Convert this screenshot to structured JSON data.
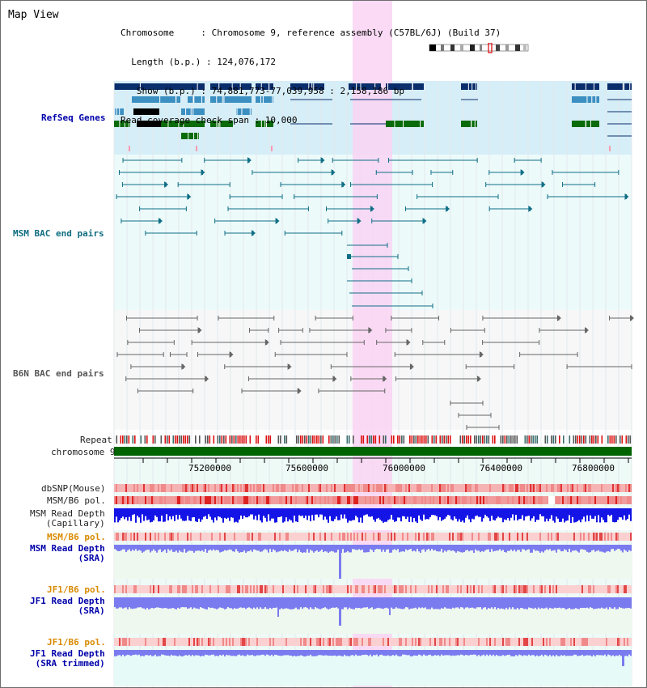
{
  "header": {
    "title": "Map View",
    "info_lines": [
      "Chromosome     : Chromosome 9, reference assembly (C57BL/6J) (Build 37)",
      "  Length (b.p.) : 124,076,172",
      "   Show (b.p.) : 74,881,773-77,039,958 : 2,158,186 bp",
      "Read coverage check span : 10,000"
    ]
  },
  "tracks": {
    "refseq": "RefSeq Genes",
    "msm_bac": "MSM BAC end pairs",
    "b6n_bac": "B6N BAC end pairs",
    "repeat": "Repeat",
    "chromosome": "chromosome 9",
    "dbsnp": "dbSNP(Mouse)",
    "msm_b6_pol": "MSM/B6 pol.",
    "msm_depth_cap": "MSM Read Depth\n(Capillary)",
    "msm_b6_pol_sra": "MSM/B6 pol.",
    "msm_depth_sra": "MSM Read Depth\n(SRA)",
    "jf1_b6_pol_1": "JF1/B6 pol.",
    "jf1_depth_sra": "JF1 Read Depth\n(SRA)",
    "jf1_b6_pol_2": "JF1/B6 pol.",
    "jf1_depth_trim": "JF1 Read Depth\n(SRA trimmed)"
  },
  "axis": {
    "ticks": [
      "75200000",
      "75600000",
      "76000000",
      "76400000",
      "76800000"
    ]
  },
  "colors": {
    "highlight": "#f9d3f3",
    "refseq_bg": "#d6eef8",
    "refseq_dark": "#0a2d6b",
    "refseq_mid": "#3b8fc1",
    "refseq_green": "#0a6b0a",
    "bac_teal": "#0f6f86",
    "bac_grey": "#666666",
    "chromosome_green": "#006400",
    "depth_blue": "#1414e6",
    "depth_light": "#7b7bf0"
  }
}
